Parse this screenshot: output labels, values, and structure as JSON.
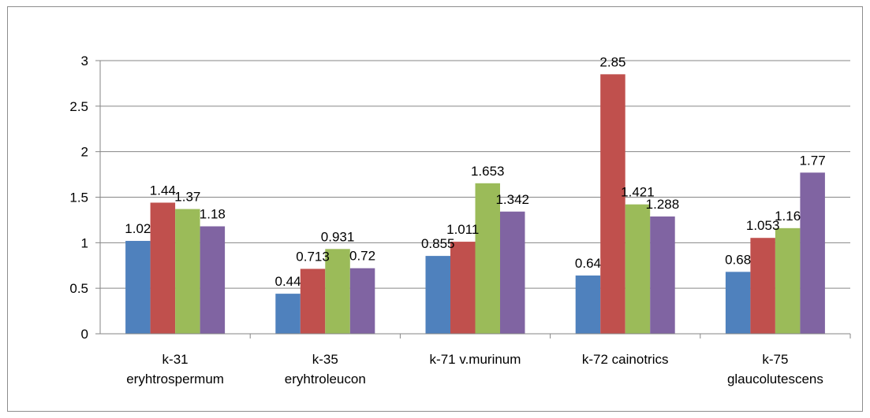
{
  "chart_data": {
    "type": "bar",
    "title": "",
    "xlabel": "",
    "ylabel": "",
    "ylim": [
      0,
      3
    ],
    "yticks": [
      "0",
      "0.5",
      "1",
      "1.5",
      "2",
      "2.5",
      "3"
    ],
    "categories": [
      [
        "k-31",
        "eryhtrospermum"
      ],
      [
        "k-35",
        "eryhtroleucon"
      ],
      [
        "k-71 v.murinum"
      ],
      [
        "k-72 cainotrics"
      ],
      [
        "k-75",
        "glaucolutescens"
      ]
    ],
    "series": [
      {
        "values": [
          1.02,
          0.44,
          0.855,
          0.64,
          0.68
        ],
        "labels": [
          "1.02",
          "0.44",
          "0.855",
          "0.64",
          "0.68"
        ],
        "color": "#4F81BD"
      },
      {
        "values": [
          1.44,
          0.713,
          1.011,
          2.85,
          1.053
        ],
        "labels": [
          "1.44",
          "0.713",
          "1.011",
          "2.85",
          "1.053"
        ],
        "color": "#C0504D"
      },
      {
        "values": [
          1.37,
          0.931,
          1.653,
          1.421,
          1.16
        ],
        "labels": [
          "1.37",
          "0.931",
          "1.653",
          "1.421",
          "1.16"
        ],
        "color": "#9BBB59"
      },
      {
        "values": [
          1.18,
          0.72,
          1.342,
          1.288,
          1.77
        ],
        "labels": [
          "1.18",
          "0.72",
          "1.342",
          "1.288",
          "1.77"
        ],
        "color": "#8064A2"
      }
    ],
    "grid": true,
    "gridline_color": "#868686",
    "legend": "none"
  }
}
